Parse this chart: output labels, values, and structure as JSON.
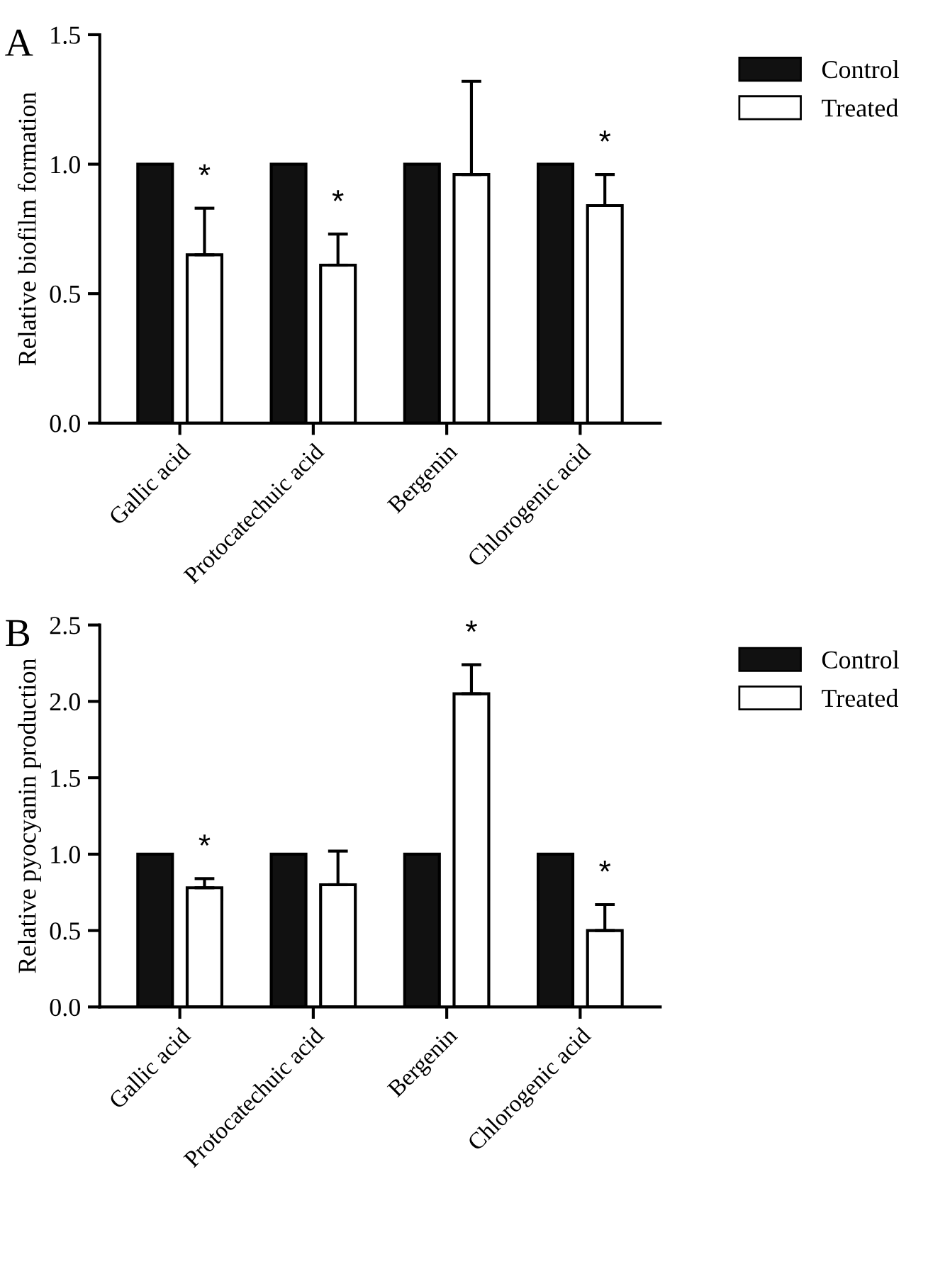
{
  "chart_data": [
    {
      "type": "bar",
      "title": "A",
      "ylabel": "Relative biofilm formation",
      "categories": [
        "Gallic acid",
        "Protocatechuic acid",
        "Bergenin",
        "Chlorogenic acid"
      ],
      "series": [
        {
          "name": "Control",
          "color": "#111111",
          "values": [
            1.0,
            1.0,
            1.0,
            1.0
          ]
        },
        {
          "name": "Treated",
          "color": "#ffffff",
          "values": [
            0.65,
            0.61,
            0.96,
            0.84
          ],
          "errors": [
            [
              0.65,
              0.83
            ],
            [
              0.61,
              0.73
            ],
            [
              0.96,
              1.32
            ],
            [
              0.84,
              0.96
            ]
          ],
          "value_labels": [
            "*",
            "*",
            null,
            "*"
          ]
        }
      ],
      "ylim": [
        0,
        1.5
      ],
      "yticks": [
        {
          "value": 0,
          "label": "0.0"
        },
        {
          "value": 0.5,
          "label": "0.5"
        },
        {
          "value": 1,
          "label": "1.0"
        },
        {
          "value": 1.5,
          "label": "1.5"
        }
      ],
      "grid": false,
      "legend": "top right"
    },
    {
      "type": "bar",
      "title": "B",
      "ylabel": "Relative pyocyanin production",
      "categories": [
        "Gallic acid",
        "Protocatechuic acid",
        "Bergenin",
        "Chlorogenic acid"
      ],
      "series": [
        {
          "name": "Control",
          "color": "#111111",
          "values": [
            1.0,
            1.0,
            1.0,
            1.0
          ]
        },
        {
          "name": "Treated",
          "color": "#ffffff",
          "values": [
            0.78,
            0.8,
            2.05,
            0.5
          ],
          "errors": [
            [
              0.78,
              0.84
            ],
            [
              0.8,
              1.02
            ],
            [
              2.05,
              2.24
            ],
            [
              0.5,
              0.67
            ]
          ],
          "value_labels": [
            "*",
            null,
            "*",
            "*"
          ]
        }
      ],
      "ylim": [
        0,
        2.5
      ],
      "yticks": [
        {
          "value": 0,
          "label": "0.0"
        },
        {
          "value": 0.5,
          "label": "0.5"
        },
        {
          "value": 1,
          "label": "1.0"
        },
        {
          "value": 1.5,
          "label": "1.5"
        },
        {
          "value": 2,
          "label": "2.0"
        },
        {
          "value": 2.5,
          "label": "2.5"
        }
      ],
      "grid": false,
      "legend": "top right"
    }
  ]
}
